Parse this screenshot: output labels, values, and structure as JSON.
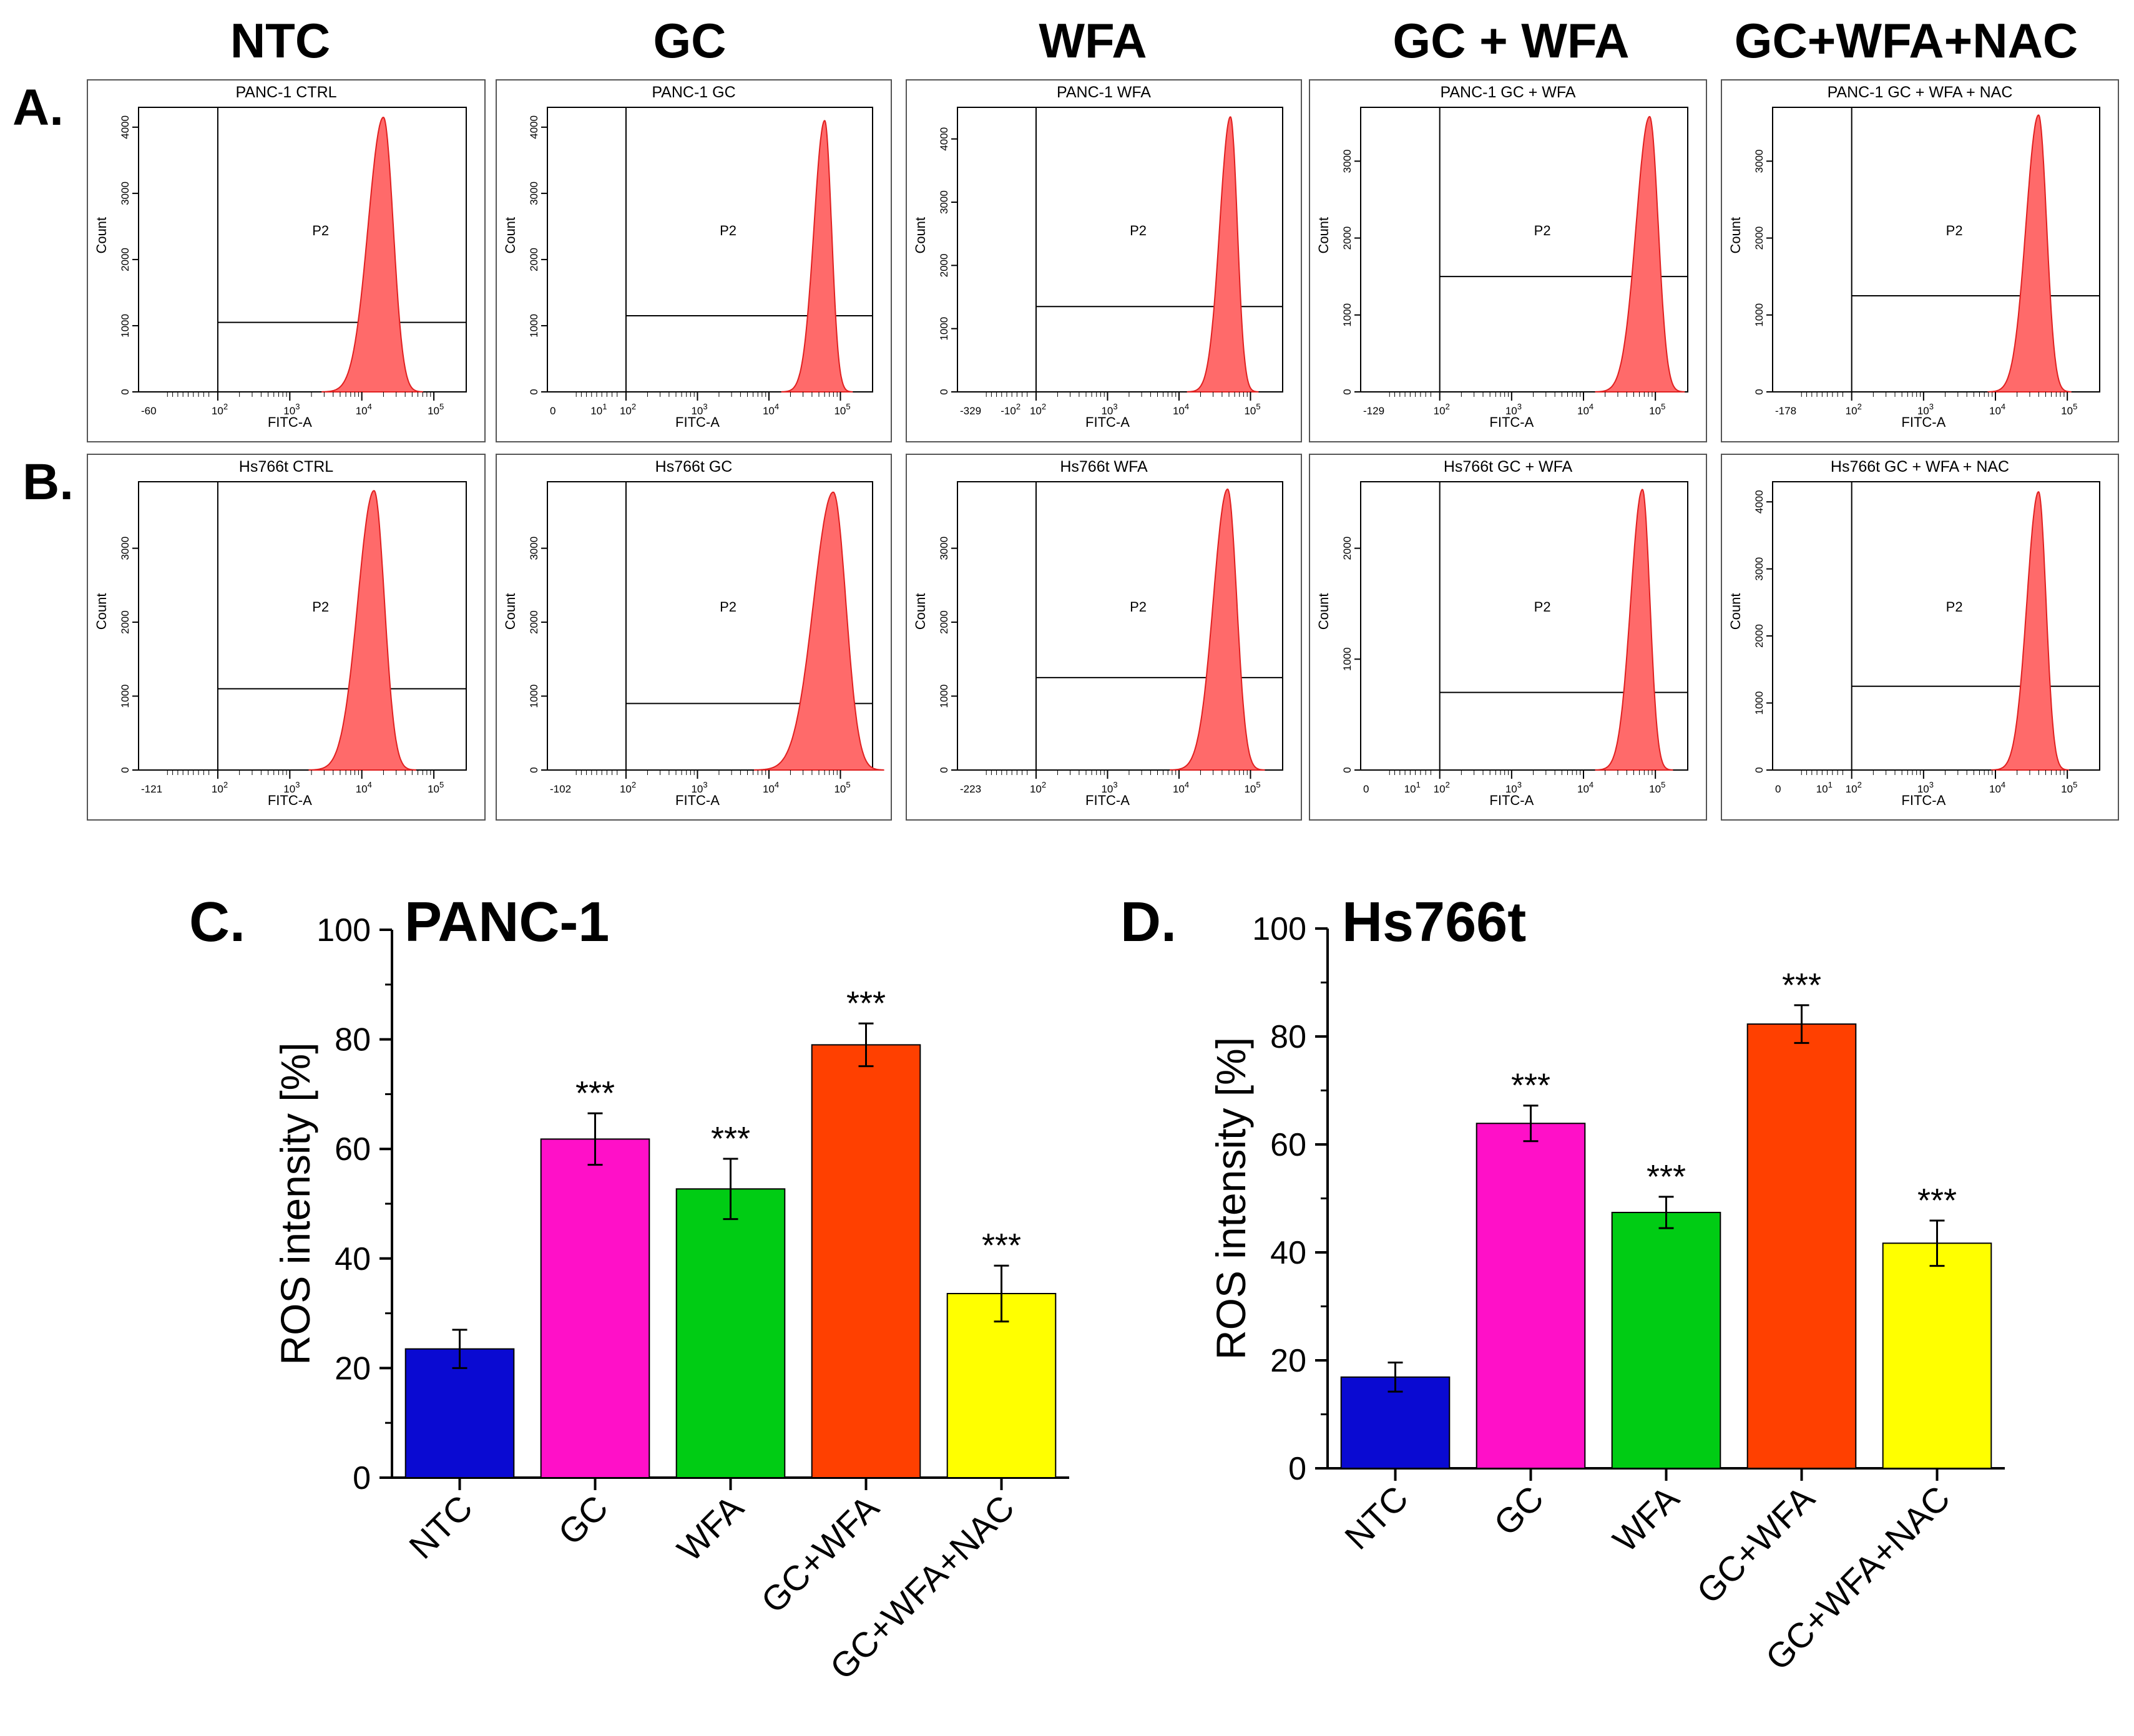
{
  "figure": {
    "column_titles": [
      "NTC",
      "GC",
      "WFA",
      "GC + WFA",
      "GC+WFA+NAC"
    ],
    "row_letters": [
      "A.",
      "B."
    ],
    "histogram_common": {
      "x_axis_label": "FITC-A",
      "y_axis_label": "Count",
      "gate_label": "P2",
      "x_tick_labels": [
        "10<sup>2</sup>",
        "10<sup>3</sup>",
        "10<sup>4</sup>",
        "10<sup>5</sup>"
      ]
    },
    "flow_panels": [
      {
        "row": 0,
        "title": "PANC-1 CTRL",
        "x_min_label": "-60",
        "y_ticks": [
          "0",
          "1000",
          "2000",
          "3000",
          "4000"
        ],
        "y_max": 4300,
        "gate_level": 1050,
        "peak_log": 4.3,
        "peak_height": 4150,
        "sigma": 0.17
      },
      {
        "row": 0,
        "title": "PANC-1 GC",
        "x_min_label": "0",
        "extra_tick": "10<sup>1</sup>",
        "y_ticks": [
          "0",
          "1000",
          "2000",
          "3000",
          "4000"
        ],
        "y_max": 4300,
        "gate_level": 1150,
        "peak_log": 4.78,
        "peak_height": 4100,
        "sigma": 0.12
      },
      {
        "row": 0,
        "title": "PANC-1 WFA",
        "x_min_label": "-329",
        "extra_tick": "-10<sup>2</sup>",
        "y_ticks": [
          "0",
          "1000",
          "2000",
          "3000",
          "4000"
        ],
        "y_max": 4500,
        "gate_level": 1350,
        "peak_log": 4.72,
        "peak_height": 4350,
        "sigma": 0.12
      },
      {
        "row": 0,
        "title": "PANC-1 GC + WFA",
        "x_min_label": "-129",
        "y_ticks": [
          "0",
          "1000",
          "2000",
          "3000"
        ],
        "y_max": 3700,
        "gate_level": 1500,
        "peak_log": 4.92,
        "peak_height": 3580,
        "sigma": 0.15
      },
      {
        "row": 0,
        "title": "PANC-1 GC + WFA + NAC",
        "x_min_label": "-178",
        "y_ticks": [
          "0",
          "1000",
          "2000",
          "3000"
        ],
        "y_max": 3700,
        "gate_level": 1250,
        "peak_log": 4.6,
        "peak_height": 3600,
        "sigma": 0.14
      },
      {
        "row": 1,
        "title": "Hs766t CTRL",
        "x_min_label": "-121",
        "y_ticks": [
          "0",
          "1000",
          "2000",
          "3000"
        ],
        "y_max": 3900,
        "gate_level": 1100,
        "peak_log": 4.17,
        "peak_height": 3780,
        "sigma": 0.18
      },
      {
        "row": 1,
        "title": "Hs766t GC",
        "x_min_label": "-102",
        "y_ticks": [
          "0",
          "1000",
          "2000",
          "3000"
        ],
        "y_max": 3900,
        "gate_level": 900,
        "peak_log": 4.9,
        "peak_height": 3760,
        "sigma": 0.22
      },
      {
        "row": 1,
        "title": "Hs766t WFA",
        "x_min_label": "-223",
        "y_ticks": [
          "0",
          "1000",
          "2000",
          "3000"
        ],
        "y_max": 3900,
        "gate_level": 1250,
        "peak_log": 4.68,
        "peak_height": 3800,
        "sigma": 0.16
      },
      {
        "row": 1,
        "title": "Hs766t GC + WFA",
        "x_min_label": "0",
        "extra_tick": "10<sup>1</sup>",
        "y_ticks": [
          "0",
          "1000",
          "2000"
        ],
        "y_max": 2600,
        "gate_level": 700,
        "peak_log": 4.82,
        "peak_height": 2530,
        "sigma": 0.13
      },
      {
        "row": 1,
        "title": "Hs766t GC + WFA + NAC",
        "x_min_label": "0",
        "extra_tick": "10<sup>1</sup>",
        "y_ticks": [
          "0",
          "1000",
          "2000",
          "3000",
          "4000"
        ],
        "y_max": 4300,
        "gate_level": 1250,
        "peak_log": 4.6,
        "peak_height": 4150,
        "sigma": 0.13
      }
    ]
  },
  "chart_data": [
    {
      "type": "bar",
      "panel_letter": "C.",
      "title": "PANC-1",
      "ylabel": "ROS intensity [%]",
      "xlabel": "",
      "ylim": [
        0,
        100
      ],
      "yticks": [
        "0",
        "20",
        "40",
        "60",
        "80",
        "100"
      ],
      "categories": [
        "NTC",
        "GC",
        "WFA",
        "GC+WFA",
        "GC+WFA+NAC"
      ],
      "values": [
        23.5,
        61.8,
        52.7,
        79.0,
        33.6
      ],
      "errors": [
        3.5,
        4.7,
        5.5,
        3.9,
        5.1
      ],
      "significance": [
        "",
        "***",
        "***",
        "***",
        "***"
      ],
      "colors": [
        "#0a0ad2",
        "#ff10c8",
        "#00cc14",
        "#ff4000",
        "#ffff00"
      ]
    },
    {
      "type": "bar",
      "panel_letter": "D.",
      "title": "Hs766t",
      "ylabel": "ROS intensity [%]",
      "xlabel": "",
      "ylim": [
        0,
        100
      ],
      "yticks": [
        "0",
        "20",
        "40",
        "60",
        "80",
        "100"
      ],
      "categories": [
        "NTC",
        "GC",
        "WFA",
        "GC+WFA",
        "GC+WFA+NAC"
      ],
      "values": [
        16.9,
        63.9,
        47.4,
        82.3,
        41.7
      ],
      "errors": [
        2.7,
        3.3,
        2.9,
        3.5,
        4.2
      ],
      "significance": [
        "",
        "***",
        "***",
        "***",
        "***"
      ],
      "colors": [
        "#0a0ad2",
        "#ff10c8",
        "#00cc14",
        "#ff4000",
        "#ffff00"
      ]
    }
  ]
}
